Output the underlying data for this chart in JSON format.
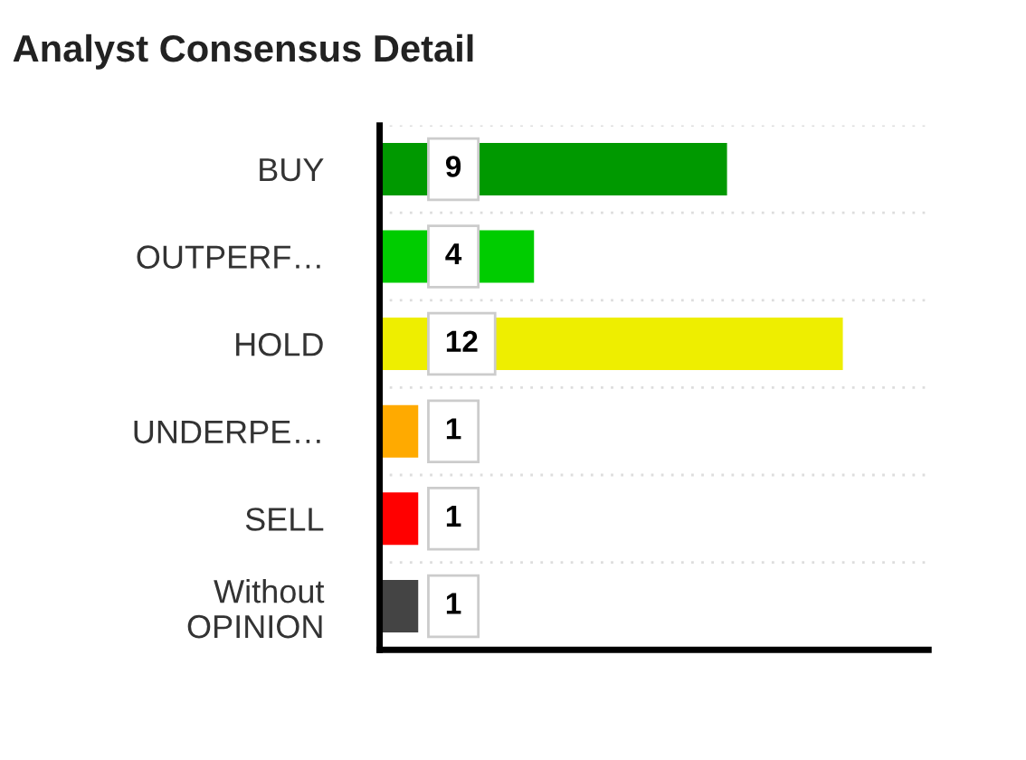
{
  "chart_data": {
    "type": "bar",
    "orientation": "horizontal",
    "title": "Analyst Consensus Detail",
    "categories": [
      "BUY",
      "OUTPERF…",
      "HOLD",
      "UNDERPE…",
      "SELL",
      "Without\nOPINION"
    ],
    "values": [
      9,
      4,
      12,
      1,
      1,
      1
    ],
    "colors": [
      "#009900",
      "#00cc00",
      "#eeee00",
      "#ffaa00",
      "#ff0000",
      "#444444"
    ],
    "data_labels": true,
    "grid": "y"
  }
}
